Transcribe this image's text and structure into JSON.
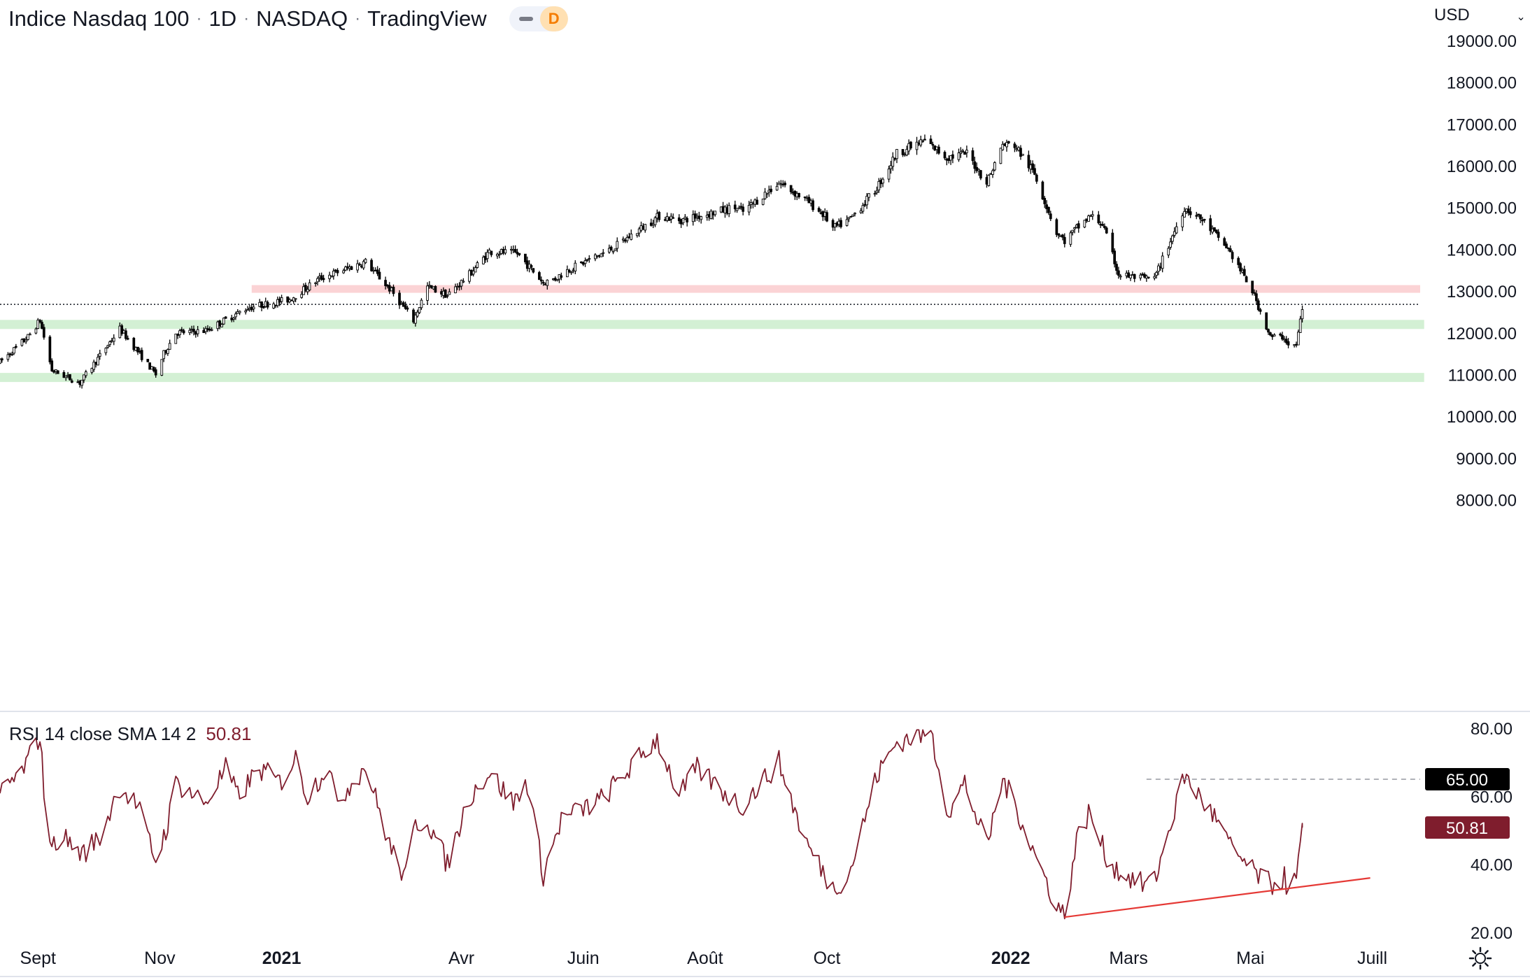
{
  "header": {
    "title": "Indice Nasdaq 100",
    "interval": "1D",
    "exchange": "NASDAQ",
    "source": "TradingView",
    "separator": "·",
    "badge": "D"
  },
  "currency": {
    "label": "USD",
    "chevron_icon": "chevron-down-icon"
  },
  "colors": {
    "candle": "#000000",
    "support_zone": "#d3f0d4",
    "resistance_zone": "#fbd3d5",
    "rsi_line": "#7f1d2d",
    "rsi_trendline": "#e53935",
    "axis_text": "#131722",
    "label_black_bg": "#000000",
    "label_rsi_bg": "#7f1d2d"
  },
  "chart_data": [
    {
      "type": "candlestick",
      "title": "",
      "ylim": [
        7600,
        19150
      ],
      "yticks": [
        "19000.00",
        "18000.00",
        "17000.00",
        "16000.00",
        "15000.00",
        "14000.00",
        "13000.00",
        "12000.00",
        "11000.00",
        "10000.00",
        "9000.00",
        "8000.00"
      ],
      "ytick_values": [
        19000,
        18000,
        17000,
        16000,
        15000,
        14000,
        13000,
        12000,
        11000,
        10000,
        9000,
        8000
      ],
      "xticks": [
        {
          "label": "Sept",
          "date": "2020-09-01",
          "bold": false
        },
        {
          "label": "Nov",
          "date": "2020-11-01",
          "bold": false
        },
        {
          "label": "2021",
          "date": "2021-01-01",
          "bold": true
        },
        {
          "label": "Avr",
          "date": "2021-04-01",
          "bold": false
        },
        {
          "label": "Juin",
          "date": "2021-06-01",
          "bold": false
        },
        {
          "label": "Août",
          "date": "2021-08-01",
          "bold": false
        },
        {
          "label": "Oct",
          "date": "2021-10-01",
          "bold": false
        },
        {
          "label": "2022",
          "date": "2022-01-01",
          "bold": true
        },
        {
          "label": "Mars",
          "date": "2022-03-01",
          "bold": false
        },
        {
          "label": "Mai",
          "date": "2022-05-01",
          "bold": false
        },
        {
          "label": "Juill",
          "date": "2022-07-01",
          "bold": false
        }
      ],
      "xrange": [
        "2020-08-13",
        "2022-07-25"
      ],
      "price_path": [
        [
          "2020-08-13",
          11300
        ],
        [
          "2020-08-27",
          11900
        ],
        [
          "2020-09-02",
          12300
        ],
        [
          "2020-09-08",
          11100
        ],
        [
          "2020-09-22",
          10800
        ],
        [
          "2020-10-12",
          12100
        ],
        [
          "2020-10-30",
          11000
        ],
        [
          "2020-11-03",
          11500
        ],
        [
          "2020-11-09",
          12000
        ],
        [
          "2020-11-24",
          12050
        ],
        [
          "2020-12-15",
          12600
        ],
        [
          "2021-01-05",
          12800
        ],
        [
          "2021-01-20",
          13300
        ],
        [
          "2021-02-12",
          13700
        ],
        [
          "2021-02-25",
          13000
        ],
        [
          "2021-03-08",
          12300
        ],
        [
          "2021-03-15",
          13100
        ],
        [
          "2021-03-25",
          12900
        ],
        [
          "2021-04-05",
          13400
        ],
        [
          "2021-04-15",
          13950
        ],
        [
          "2021-04-29",
          13900
        ],
        [
          "2021-05-12",
          13200
        ],
        [
          "2021-05-18",
          13300
        ],
        [
          "2021-05-24",
          13500
        ],
        [
          "2021-06-15",
          14000
        ],
        [
          "2021-07-09",
          14800
        ],
        [
          "2021-07-20",
          14700
        ],
        [
          "2021-08-16",
          15000
        ],
        [
          "2021-08-20",
          14900
        ],
        [
          "2021-09-07",
          15600
        ],
        [
          "2021-09-20",
          15200
        ],
        [
          "2021-09-30",
          14800
        ],
        [
          "2021-10-04",
          14500
        ],
        [
          "2021-10-12",
          14700
        ],
        [
          "2021-10-25",
          15400
        ],
        [
          "2021-11-05",
          16300
        ],
        [
          "2021-11-19",
          16600
        ],
        [
          "2021-11-30",
          16200
        ],
        [
          "2021-12-10",
          16300
        ],
        [
          "2021-12-20",
          15600
        ],
        [
          "2021-12-28",
          16500
        ],
        [
          "2022-01-03",
          16500
        ],
        [
          "2022-01-13",
          15800
        ],
        [
          "2022-01-24",
          14400
        ],
        [
          "2022-01-28",
          14200
        ],
        [
          "2022-02-03",
          14500
        ],
        [
          "2022-02-10",
          14800
        ],
        [
          "2022-02-16",
          14600
        ],
        [
          "2022-02-24",
          13400
        ],
        [
          "2022-03-08",
          13300
        ],
        [
          "2022-03-14",
          13300
        ],
        [
          "2022-03-29",
          15000
        ],
        [
          "2022-04-07",
          14700
        ],
        [
          "2022-04-20",
          14000
        ],
        [
          "2022-05-02",
          13000
        ],
        [
          "2022-05-11",
          11900
        ],
        [
          "2022-05-18",
          11900
        ],
        [
          "2022-05-20",
          11700
        ],
        [
          "2022-05-24",
          11700
        ],
        [
          "2022-05-27",
          12600
        ]
      ],
      "horizontal_zones": [
        {
          "kind": "resistance",
          "price": 13050,
          "from": "2020-12-17",
          "to": "2022-07-25"
        },
        {
          "kind": "support",
          "price": 12200,
          "from": "2020-08-13",
          "to": "2022-07-27"
        },
        {
          "kind": "support",
          "price": 10930,
          "from": "2020-08-13",
          "to": "2022-07-27"
        }
      ],
      "last_price_line": 12680
    },
    {
      "type": "line",
      "title": "",
      "series": [
        {
          "name": "RSI 14 close SMA 14 2",
          "last_value": "50.81"
        }
      ],
      "legend": "RSI 14 close SMA 14 2",
      "legend_value": "50.81",
      "ylim": [
        20,
        80
      ],
      "yticks": [
        "80.00",
        "60.00",
        "40.00",
        "20.00"
      ],
      "ytick_values": [
        80,
        60,
        40,
        20
      ],
      "labels": [
        {
          "text": "65.00",
          "value": 65,
          "style": "dark"
        },
        {
          "text": "50.81",
          "value": 50.81,
          "style": "rsi"
        }
      ],
      "reference_line": {
        "value": 65,
        "from": "2022-03-10",
        "to": "2022-07-25",
        "style": "dashed"
      },
      "rsi_path": [
        [
          "2020-08-13",
          61
        ],
        [
          "2020-08-24",
          67
        ],
        [
          "2020-09-02",
          78
        ],
        [
          "2020-09-04",
          62
        ],
        [
          "2020-09-08",
          44
        ],
        [
          "2020-09-12",
          49
        ],
        [
          "2020-09-23",
          43
        ],
        [
          "2020-10-02",
          48
        ],
        [
          "2020-10-12",
          63
        ],
        [
          "2020-10-21",
          57
        ],
        [
          "2020-10-30",
          41
        ],
        [
          "2020-11-05",
          52
        ],
        [
          "2020-11-09",
          64
        ],
        [
          "2020-11-24",
          58
        ],
        [
          "2020-12-04",
          68
        ],
        [
          "2020-12-10",
          60
        ],
        [
          "2020-12-21",
          68
        ],
        [
          "2020-12-31",
          64
        ],
        [
          "2021-01-08",
          71
        ],
        [
          "2021-01-14",
          60
        ],
        [
          "2021-01-25",
          70
        ],
        [
          "2021-01-28",
          58
        ],
        [
          "2021-02-12",
          69
        ],
        [
          "2021-02-25",
          44
        ],
        [
          "2021-03-04",
          36
        ],
        [
          "2021-03-09",
          52
        ],
        [
          "2021-03-15",
          53
        ],
        [
          "2021-03-25",
          40
        ],
        [
          "2021-04-05",
          60
        ],
        [
          "2021-04-15",
          67
        ],
        [
          "2021-04-27",
          58
        ],
        [
          "2021-05-04",
          64
        ],
        [
          "2021-05-12",
          37
        ],
        [
          "2021-05-21",
          53
        ],
        [
          "2021-06-10",
          59
        ],
        [
          "2021-07-08",
          77
        ],
        [
          "2021-07-19",
          60
        ],
        [
          "2021-07-28",
          68
        ],
        [
          "2021-08-19",
          57
        ],
        [
          "2021-09-07",
          70
        ],
        [
          "2021-09-20",
          47
        ],
        [
          "2021-10-04",
          33
        ],
        [
          "2021-10-12",
          37
        ],
        [
          "2021-10-26",
          66
        ],
        [
          "2021-11-05",
          76
        ],
        [
          "2021-11-22",
          79
        ],
        [
          "2021-12-01",
          55
        ],
        [
          "2021-12-09",
          64
        ],
        [
          "2021-12-20",
          45
        ],
        [
          "2021-12-28",
          65
        ],
        [
          "2022-01-05",
          55
        ],
        [
          "2022-01-13",
          43
        ],
        [
          "2022-01-24",
          28
        ],
        [
          "2022-01-28",
          25
        ],
        [
          "2022-02-03",
          47
        ],
        [
          "2022-02-09",
          55
        ],
        [
          "2022-02-14",
          48
        ],
        [
          "2022-02-18",
          42
        ],
        [
          "2022-02-24",
          38
        ],
        [
          "2022-03-08",
          34
        ],
        [
          "2022-03-14",
          35
        ],
        [
          "2022-03-29",
          66
        ],
        [
          "2022-04-08",
          58
        ],
        [
          "2022-04-14",
          53
        ],
        [
          "2022-04-21",
          45
        ],
        [
          "2022-05-02",
          38
        ],
        [
          "2022-05-09",
          35
        ],
        [
          "2022-05-11",
          34
        ],
        [
          "2022-05-18",
          36
        ],
        [
          "2022-05-20",
          33
        ],
        [
          "2022-05-24",
          35
        ],
        [
          "2022-05-27",
          50.81
        ]
      ],
      "trendline": {
        "from": [
          "2022-01-28",
          24.5
        ],
        "to": [
          "2022-06-30",
          36
        ]
      }
    }
  ],
  "rsi_legend": {
    "label": "RSI 14 close SMA 14 2",
    "value": "50.81"
  },
  "settings": {
    "gear_icon": "gear-icon"
  }
}
